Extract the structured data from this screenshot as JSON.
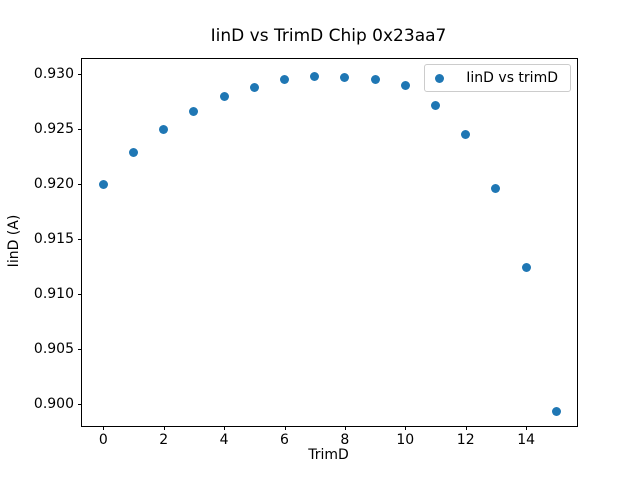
{
  "figure": {
    "background": "#ffffff"
  },
  "chart_data": {
    "type": "scatter",
    "title": "IinD vs TrimD Chip 0x23aa7",
    "xlabel": "TrimD",
    "ylabel": "IinD (A)",
    "x": [
      0,
      1,
      2,
      3,
      4,
      5,
      6,
      7,
      8,
      9,
      10,
      11,
      12,
      13,
      14,
      15
    ],
    "series": [
      {
        "name": "IinD vs trimD",
        "color": "#1f77b4",
        "values": [
          0.92,
          0.9229,
          0.925,
          0.9266,
          0.928,
          0.9288,
          0.9295,
          0.9298,
          0.9297,
          0.9295,
          0.929,
          0.9272,
          0.9245,
          0.9196,
          0.9124,
          0.8993
        ]
      }
    ],
    "xlim": [
      -0.705,
      15.685
    ],
    "ylim": [
      0.89795,
      0.9314
    ],
    "x_ticks": [
      0,
      2,
      4,
      6,
      8,
      10,
      12,
      14
    ],
    "y_ticks": [
      0.9,
      0.905,
      0.91,
      0.915,
      0.92,
      0.925,
      0.93
    ],
    "y_tick_decimals": 3,
    "grid": false,
    "legend_position": "upper right",
    "marker": "circle",
    "marker_size_px": 9
  }
}
